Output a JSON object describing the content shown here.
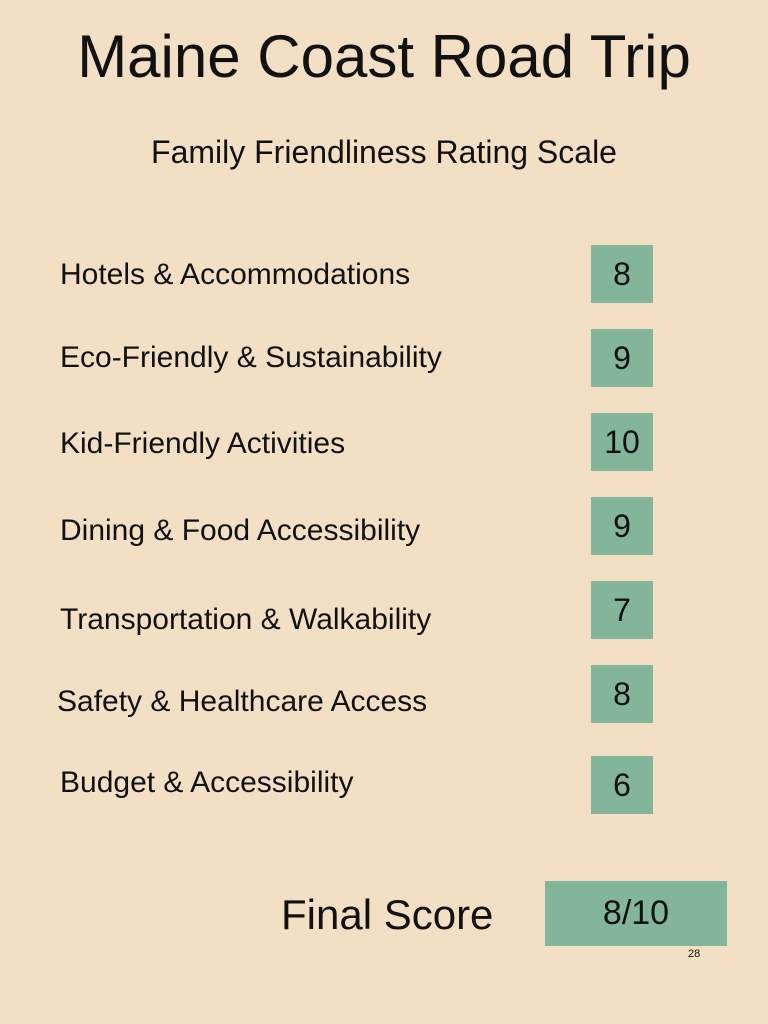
{
  "header": {
    "title": "Maine Coast Road Trip",
    "subtitle": "Family Friendliness Rating Scale"
  },
  "ratings": [
    {
      "label": "Hotels & Accommodations",
      "score": 8
    },
    {
      "label": "Eco-Friendly & Sustainability",
      "score": 9
    },
    {
      "label": "Kid-Friendly Activities",
      "score": 10
    },
    {
      "label": "Dining & Food Accessibility",
      "score": 9
    },
    {
      "label": "Transportation & Walkability",
      "score": 7
    },
    {
      "label": "Safety & Healthcare Access",
      "score": 8
    },
    {
      "label": "Budget & Accessibility",
      "score": 6
    }
  ],
  "final": {
    "label": "Final Score",
    "score": "8/10"
  },
  "page_number": 28
}
